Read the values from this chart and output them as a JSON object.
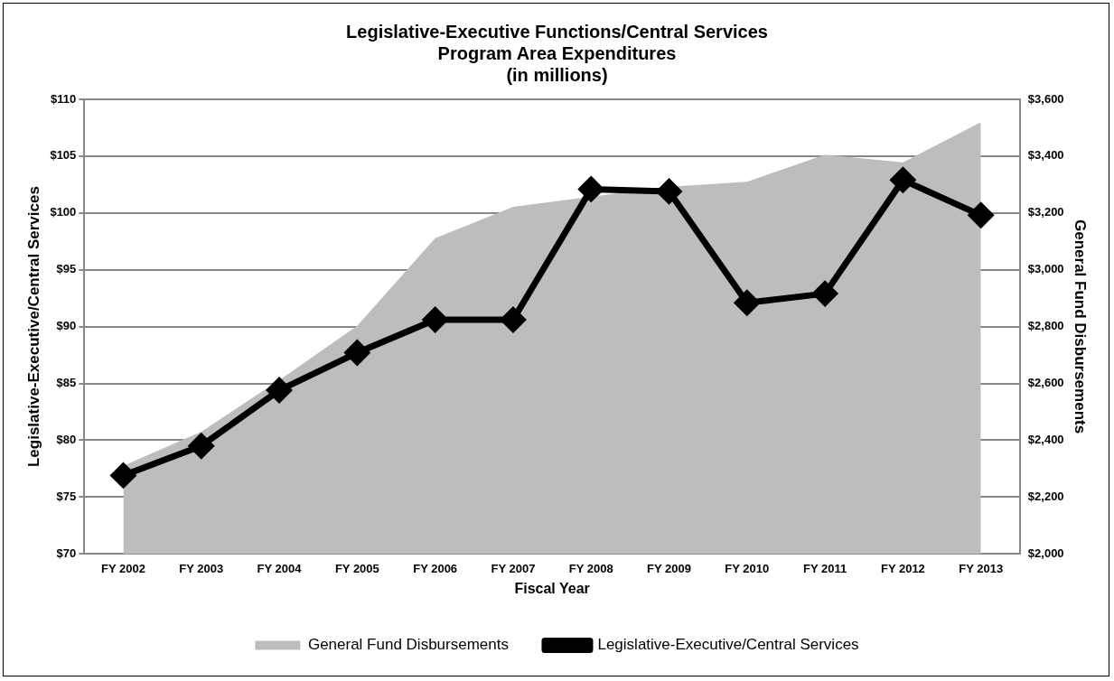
{
  "chart_data": {
    "type": "line",
    "title": "Legislative-Executive Functions/Central Services\nProgram Area Expenditures\n(in millions)",
    "xlabel": "Fiscal Year",
    "ylabel": "Legislative-Executive/Central Services",
    "y2label": "General Fund Disbursements",
    "categories": [
      "FY 2002",
      "FY 2003",
      "FY 2004",
      "FY 2005",
      "FY 2006",
      "FY 2007",
      "FY 2008",
      "FY 2009",
      "FY 2010",
      "FY 2011",
      "FY 2012",
      "FY 2013"
    ],
    "series": [
      {
        "name": "General Fund Disbursements",
        "type": "area",
        "axis": "y2",
        "color": "#bdbdbd",
        "values": [
          2310,
          2430,
          2611,
          2803,
          3111,
          3222,
          3257,
          3292,
          3310,
          3405,
          3378,
          3520
        ]
      },
      {
        "name": "Legislative-Executive/Central Services",
        "color": "#000000",
        "marker": "diamond",
        "values": [
          76.9,
          79.5,
          84.4,
          87.7,
          90.6,
          90.6,
          102.1,
          101.9,
          92.1,
          92.9,
          102.9,
          99.8
        ]
      }
    ],
    "ylim": [
      70,
      110
    ],
    "yticks": [
      {
        "value": 70,
        "label": "$70"
      },
      {
        "value": 75,
        "label": "$75"
      },
      {
        "value": 80,
        "label": "$80"
      },
      {
        "value": 85,
        "label": "$85"
      },
      {
        "value": 90,
        "label": "$90"
      },
      {
        "value": 95,
        "label": "$95"
      },
      {
        "value": 100,
        "label": "$100"
      },
      {
        "value": 105,
        "label": "$105"
      },
      {
        "value": 110,
        "label": "$110"
      }
    ],
    "y2lim": [
      2000,
      3600
    ],
    "y2ticks": [
      {
        "value": 2000,
        "label": "$2,000"
      },
      {
        "value": 2200,
        "label": "$2,200"
      },
      {
        "value": 2400,
        "label": "$2,400"
      },
      {
        "value": 2600,
        "label": "$2,600"
      },
      {
        "value": 2800,
        "label": "$2,800"
      },
      {
        "value": 3000,
        "label": "$3,000"
      },
      {
        "value": 3200,
        "label": "$3,200"
      },
      {
        "value": 3400,
        "label": "$3,400"
      },
      {
        "value": 3600,
        "label": "$3,600"
      }
    ],
    "grid": "y",
    "legend": "bottom"
  }
}
